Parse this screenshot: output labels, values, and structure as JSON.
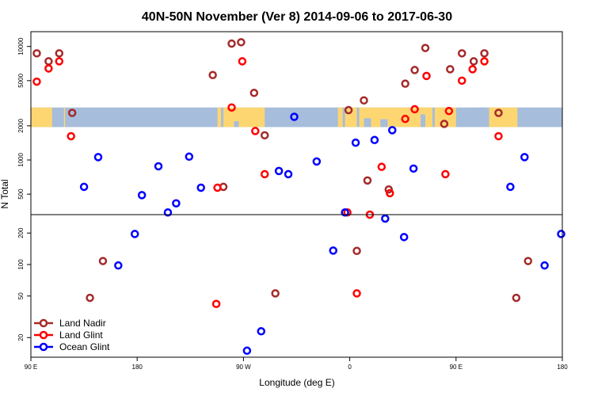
{
  "chart_data": {
    "type": "scatter",
    "title": "40N-50N November (Ver 8)   2014-09-06 to 2017-06-30",
    "xlabel": "Longitude (deg E)",
    "ylabel": "N Total",
    "x_ticks": [
      {
        "value": 90,
        "label": "90 E"
      },
      {
        "value": 180,
        "label": "180"
      },
      {
        "value": 270,
        "label": "90 W"
      },
      {
        "value": 360,
        "label": "0"
      },
      {
        "value": 450,
        "label": "90 E"
      },
      {
        "value": 540,
        "label": "180"
      }
    ],
    "xlim": [
      90,
      540
    ],
    "upper_panel": {
      "scale": "log",
      "ylim": [
        330,
        13500
      ],
      "y_ticks": [
        500,
        1000,
        2000,
        5000,
        10000
      ],
      "map_band": [
        1950,
        2900
      ]
    },
    "lower_panel": {
      "scale": "log",
      "ylim": [
        13,
        300
      ],
      "y_ticks": [
        20,
        50,
        100,
        200
      ]
    },
    "legend": {
      "placement": "bottom-left",
      "entries": [
        {
          "label": "Land Nadir",
          "color": "#a52a2a"
        },
        {
          "label": "Land Glint",
          "color": "#ff0000"
        },
        {
          "label": "Ocean Glint",
          "color": "#0000ff"
        }
      ]
    },
    "series": [
      {
        "name": "Land Nadir",
        "color": "#a52a2a",
        "points": [
          [
            95,
            8700
          ],
          [
            105,
            7400
          ],
          [
            114,
            8700
          ],
          [
            125,
            2600
          ],
          [
            140,
            48
          ],
          [
            151,
            108
          ],
          [
            244,
            5600
          ],
          [
            253,
            580
          ],
          [
            260,
            10600
          ],
          [
            268,
            10900
          ],
          [
            279,
            3900
          ],
          [
            288,
            1650
          ],
          [
            297,
            53
          ],
          [
            359,
            2750
          ],
          [
            366,
            135
          ],
          [
            375,
            660
          ],
          [
            393,
            550
          ],
          [
            372,
            3350
          ],
          [
            407,
            4700
          ],
          [
            415,
            6200
          ],
          [
            424,
            9700
          ],
          [
            440,
            2080
          ],
          [
            445,
            6300
          ],
          [
            455,
            8700
          ],
          [
            465,
            7400
          ],
          [
            474,
            8700
          ],
          [
            486,
            2600
          ],
          [
            501,
            48
          ],
          [
            511,
            108
          ]
        ]
      },
      {
        "name": "Land Glint",
        "color": "#ff0000",
        "points": [
          [
            95,
            4900
          ],
          [
            105,
            6400
          ],
          [
            114,
            7400
          ],
          [
            124,
            1620
          ],
          [
            248,
            570
          ],
          [
            247,
            42
          ],
          [
            260,
            2900
          ],
          [
            269,
            7400
          ],
          [
            280,
            1800
          ],
          [
            288,
            750
          ],
          [
            358,
            315
          ],
          [
            366,
            53
          ],
          [
            377,
            300
          ],
          [
            387,
            870
          ],
          [
            394,
            510
          ],
          [
            407,
            2300
          ],
          [
            415,
            2800
          ],
          [
            425,
            5500
          ],
          [
            441,
            750
          ],
          [
            444,
            2700
          ],
          [
            455,
            5000
          ],
          [
            464,
            6300
          ],
          [
            474,
            7400
          ],
          [
            486,
            1620
          ]
        ]
      },
      {
        "name": "Ocean Glint",
        "color": "#0000ff",
        "points": [
          [
            135,
            580
          ],
          [
            147,
            1060
          ],
          [
            164,
            98
          ],
          [
            178,
            196
          ],
          [
            184,
            490
          ],
          [
            198,
            880
          ],
          [
            206,
            345
          ],
          [
            213,
            415
          ],
          [
            224,
            1070
          ],
          [
            234,
            570
          ],
          [
            273,
            15
          ],
          [
            285,
            23
          ],
          [
            300,
            800
          ],
          [
            308,
            750
          ],
          [
            313,
            2400
          ],
          [
            346,
            136
          ],
          [
            332,
            970
          ],
          [
            356,
            345
          ],
          [
            365,
            1420
          ],
          [
            381,
            1500
          ],
          [
            390,
            275
          ],
          [
            396,
            1830
          ],
          [
            406,
            183
          ],
          [
            414,
            840
          ],
          [
            496,
            580
          ],
          [
            508,
            1060
          ],
          [
            525,
            98
          ],
          [
            539,
            196
          ]
        ]
      }
    ]
  }
}
